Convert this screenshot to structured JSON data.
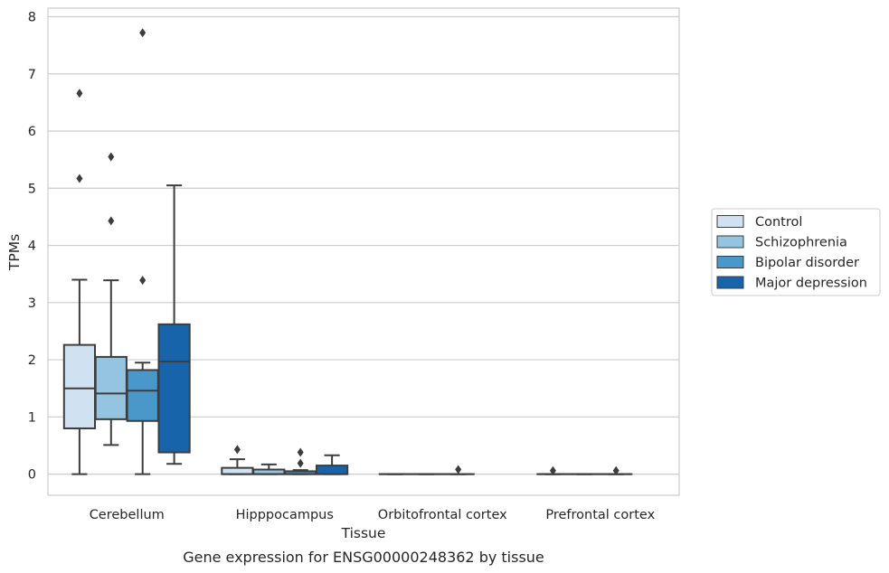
{
  "caption": "Gene expression for ENSG00000248362 by tissue",
  "chart_data": {
    "type": "box",
    "xlabel": "Tissue",
    "ylabel": "TPMs",
    "ylim": [
      -0.37,
      8.15
    ],
    "yticks": [
      0,
      1,
      2,
      3,
      4,
      5,
      6,
      7,
      8
    ],
    "grid": true,
    "legend_position": "right",
    "categories": [
      "Cerebellum",
      "Hipppocampus",
      "Orbitofrontal cortex",
      "Prefrontal cortex"
    ],
    "series": [
      {
        "name": "Control",
        "color": "#d0e1f2",
        "boxes": [
          {
            "q1": 0.8,
            "median": 1.5,
            "q3": 2.26,
            "whisker_low": 0.0,
            "whisker_high": 3.4,
            "outliers": [
              5.17,
              6.66
            ]
          },
          {
            "q1": 0.0,
            "median": 0.0,
            "q3": 0.11,
            "whisker_low": 0.0,
            "whisker_high": 0.26,
            "outliers": [
              0.43
            ]
          },
          {
            "q1": 0.0,
            "median": 0.0,
            "q3": 0.0,
            "whisker_low": 0.0,
            "whisker_high": 0.0,
            "outliers": []
          },
          {
            "q1": 0.0,
            "median": 0.0,
            "q3": 0.0,
            "whisker_low": 0.0,
            "whisker_high": 0.0,
            "outliers": [
              0.06
            ]
          }
        ]
      },
      {
        "name": "Schizophrenia",
        "color": "#94c4df",
        "boxes": [
          {
            "q1": 0.96,
            "median": 1.41,
            "q3": 2.05,
            "whisker_low": 0.51,
            "whisker_high": 3.39,
            "outliers": [
              4.43,
              5.55
            ]
          },
          {
            "q1": 0.0,
            "median": 0.0,
            "q3": 0.08,
            "whisker_low": 0.0,
            "whisker_high": 0.17,
            "outliers": []
          },
          {
            "q1": 0.0,
            "median": 0.0,
            "q3": 0.0,
            "whisker_low": 0.0,
            "whisker_high": 0.0,
            "outliers": []
          },
          {
            "q1": 0.0,
            "median": 0.0,
            "q3": 0.0,
            "whisker_low": 0.0,
            "whisker_high": 0.0,
            "outliers": []
          }
        ]
      },
      {
        "name": "Bipolar disorder",
        "color": "#4a98c9",
        "boxes": [
          {
            "q1": 0.93,
            "median": 1.46,
            "q3": 1.82,
            "whisker_low": 0.0,
            "whisker_high": 1.95,
            "outliers": [
              3.39,
              7.72
            ]
          },
          {
            "q1": 0.0,
            "median": 0.0,
            "q3": 0.05,
            "whisker_low": 0.0,
            "whisker_high": 0.07,
            "outliers": [
              0.19,
              0.38
            ]
          },
          {
            "q1": 0.0,
            "median": 0.0,
            "q3": 0.0,
            "whisker_low": 0.0,
            "whisker_high": 0.0,
            "outliers": [
              0.08
            ]
          },
          {
            "q1": 0.0,
            "median": 0.0,
            "q3": 0.0,
            "whisker_low": 0.0,
            "whisker_high": 0.0,
            "outliers": [
              0.06
            ]
          }
        ]
      },
      {
        "name": "Major depression",
        "color": "#1764ab",
        "boxes": [
          {
            "q1": 0.38,
            "median": 1.97,
            "q3": 2.62,
            "whisker_low": 0.18,
            "whisker_high": 5.05,
            "outliers": []
          },
          {
            "q1": 0.0,
            "median": 0.0,
            "q3": 0.15,
            "whisker_low": 0.0,
            "whisker_high": 0.33,
            "outliers": []
          },
          null,
          null
        ]
      }
    ]
  }
}
